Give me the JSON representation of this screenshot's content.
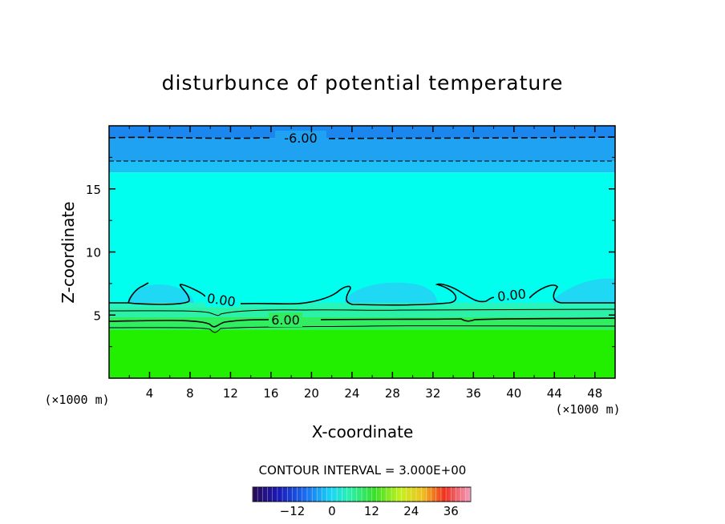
{
  "chart_data": {
    "type": "contour",
    "title": "disturbunce of potential temperature",
    "xlabel": "X-coordinate",
    "ylabel": "Z-coordinate",
    "x_unit": "(×1000 m)",
    "y_unit": "(×1000 m)",
    "xlim": [
      0,
      50
    ],
    "ylim": [
      0,
      20
    ],
    "x_ticks": [
      4,
      8,
      12,
      16,
      20,
      24,
      28,
      32,
      36,
      40,
      44,
      48
    ],
    "y_ticks": [
      5,
      10,
      15
    ],
    "contour_interval_text": "CONTOUR INTERVAL = 3.000E+00",
    "contour_interval": 3,
    "contour_labels": [
      {
        "text": "-6.00",
        "x": 18.5,
        "z": 18.9,
        "style": "dashed"
      },
      {
        "text": "0.00",
        "x": 11,
        "z": 6.2,
        "style": "solid"
      },
      {
        "text": "0.00",
        "x": 39.8,
        "z": 6.8,
        "style": "solid"
      },
      {
        "text": "6.00",
        "x": 17.5,
        "z": 4.6,
        "style": "solid"
      }
    ],
    "colorbar": {
      "min": -24,
      "max": 42,
      "tick_values": [
        -12,
        0,
        12,
        24,
        36
      ],
      "tick_labels": [
        "−12",
        "0",
        "12",
        "24",
        "36"
      ]
    },
    "regions": [
      {
        "name": "upper-layer",
        "z_range": [
          19.0,
          20.0
        ],
        "color": "#1a86ee"
      },
      {
        "name": "upper-layer-2",
        "z_range": [
          17.2,
          19.0
        ],
        "color": "#1fa2f2"
      },
      {
        "name": "upper-layer-3",
        "z_range": [
          16.3,
          17.2
        ],
        "color": "#1cc0f6"
      },
      {
        "name": "middle-layer",
        "z_range": [
          6.0,
          16.3
        ],
        "color": "#00ffee"
      },
      {
        "name": "lower-layer",
        "z_range": [
          0,
          4.0
        ],
        "color": "#22ee00"
      }
    ]
  },
  "colors": {
    "background": "#ffffff",
    "axis": "#000000"
  }
}
